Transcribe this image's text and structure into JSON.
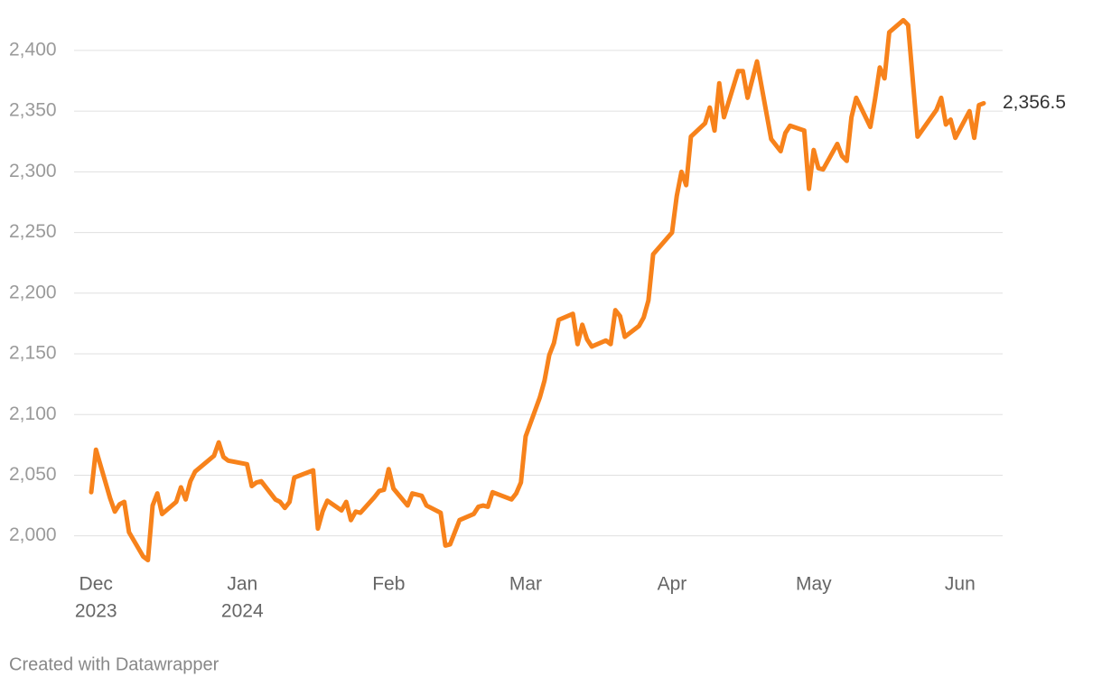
{
  "chart_data": {
    "type": "line",
    "color": "#f7821b",
    "grid": true,
    "ylim": [
      1970,
      2430
    ],
    "yticks": [
      {
        "value": 2000,
        "label": "2,000"
      },
      {
        "value": 2050,
        "label": "2,050"
      },
      {
        "value": 2100,
        "label": "2,100"
      },
      {
        "value": 2150,
        "label": "2,150"
      },
      {
        "value": 2200,
        "label": "2,200"
      },
      {
        "value": 2250,
        "label": "2,250"
      },
      {
        "value": 2300,
        "label": "2,300"
      },
      {
        "value": 2350,
        "label": "2,350"
      },
      {
        "value": 2400,
        "label": "2,400"
      }
    ],
    "xlim": [
      "2023-11-30",
      "2024-06-06"
    ],
    "xticks": [
      {
        "value": "2023-12-01",
        "label": [
          "Dec",
          "2023"
        ]
      },
      {
        "value": "2024-01-01",
        "label": [
          "Jan",
          "2024"
        ]
      },
      {
        "value": "2024-02-01",
        "label": "Feb"
      },
      {
        "value": "2024-03-01",
        "label": "Mar"
      },
      {
        "value": "2024-04-01",
        "label": "Apr"
      },
      {
        "value": "2024-05-01",
        "label": "May"
      },
      {
        "value": "2024-06-01",
        "label": "Jun"
      }
    ],
    "x": [
      "2023-11-30",
      "2023-12-01",
      "2023-12-04",
      "2023-12-05",
      "2023-12-06",
      "2023-12-07",
      "2023-12-08",
      "2023-12-11",
      "2023-12-12",
      "2023-12-13",
      "2023-12-14",
      "2023-12-15",
      "2023-12-18",
      "2023-12-19",
      "2023-12-20",
      "2023-12-21",
      "2023-12-22",
      "2023-12-26",
      "2023-12-27",
      "2023-12-28",
      "2023-12-29",
      "2024-01-02",
      "2024-01-03",
      "2024-01-04",
      "2024-01-05",
      "2024-01-08",
      "2024-01-09",
      "2024-01-10",
      "2024-01-11",
      "2024-01-12",
      "2024-01-16",
      "2024-01-17",
      "2024-01-18",
      "2024-01-19",
      "2024-01-22",
      "2024-01-23",
      "2024-01-24",
      "2024-01-25",
      "2024-01-26",
      "2024-01-29",
      "2024-01-30",
      "2024-01-31",
      "2024-02-01",
      "2024-02-02",
      "2024-02-05",
      "2024-02-06",
      "2024-02-08",
      "2024-02-09",
      "2024-02-12",
      "2024-02-13",
      "2024-02-14",
      "2024-02-16",
      "2024-02-19",
      "2024-02-20",
      "2024-02-21",
      "2024-02-22",
      "2024-02-23",
      "2024-02-27",
      "2024-02-28",
      "2024-02-29",
      "2024-03-01",
      "2024-03-04",
      "2024-03-05",
      "2024-03-06",
      "2024-03-07",
      "2024-03-08",
      "2024-03-11",
      "2024-03-12",
      "2024-03-13",
      "2024-03-14",
      "2024-03-15",
      "2024-03-18",
      "2024-03-19",
      "2024-03-20",
      "2024-03-21",
      "2024-03-22",
      "2024-03-25",
      "2024-03-26",
      "2024-03-27",
      "2024-03-28",
      "2024-04-01",
      "2024-04-02",
      "2024-04-03",
      "2024-04-04",
      "2024-04-05",
      "2024-04-08",
      "2024-04-09",
      "2024-04-10",
      "2024-04-11",
      "2024-04-12",
      "2024-04-15",
      "2024-04-16",
      "2024-04-17",
      "2024-04-18",
      "2024-04-19",
      "2024-04-22",
      "2024-04-24",
      "2024-04-25",
      "2024-04-26",
      "2024-04-29",
      "2024-04-30",
      "2024-05-01",
      "2024-05-02",
      "2024-05-03",
      "2024-05-06",
      "2024-05-07",
      "2024-05-08",
      "2024-05-09",
      "2024-05-10",
      "2024-05-13",
      "2024-05-14",
      "2024-05-15",
      "2024-05-16",
      "2024-05-17",
      "2024-05-20",
      "2024-05-21",
      "2024-05-23",
      "2024-05-27",
      "2024-05-28",
      "2024-05-29",
      "2024-05-30",
      "2024-05-31",
      "2024-06-03",
      "2024-06-04",
      "2024-06-05",
      "2024-06-06"
    ],
    "values": [
      2036,
      2071,
      2031,
      2020,
      2026,
      2028,
      2003,
      1983,
      1980,
      2025,
      2035,
      2018,
      2028,
      2040,
      2030,
      2045,
      2053,
      2066,
      2077,
      2065,
      2062,
      2059,
      2041,
      2044,
      2045,
      2030,
      2028,
      2023,
      2028,
      2048,
      2054,
      2006,
      2020,
      2029,
      2021,
      2028,
      2013,
      2020,
      2019,
      2032,
      2037,
      2038,
      2055,
      2039,
      2025,
      2035,
      2033,
      2025,
      2019,
      1992,
      1993,
      2013,
      2018,
      2024,
      2025,
      2024,
      2036,
      2030,
      2035,
      2044,
      2082,
      2114,
      2128,
      2149,
      2159,
      2178,
      2183,
      2158,
      2174,
      2162,
      2156,
      2161,
      2158,
      2186,
      2181,
      2164,
      2173,
      2180,
      2194,
      2232,
      2250,
      2280,
      2300,
      2289,
      2329,
      2340,
      2353,
      2334,
      2373,
      2345,
      2383,
      2383,
      2361,
      2376,
      2391,
      2327,
      2317,
      2332,
      2338,
      2334,
      2286,
      2318,
      2303,
      2302,
      2323,
      2313,
      2309,
      2345,
      2361,
      2337,
      2360,
      2386,
      2377,
      2415,
      2425,
      2421,
      2329,
      2351,
      2361,
      2339,
      2343,
      2328,
      2350,
      2328,
      2355,
      2356.5
    ],
    "value_labels": [
      null,
      null,
      null,
      null,
      null,
      null,
      null,
      null,
      null,
      null,
      null,
      null,
      null,
      null,
      null,
      null,
      null,
      null,
      null,
      null,
      null,
      null,
      null,
      null,
      null,
      null,
      null,
      null,
      null,
      null,
      null,
      null,
      null,
      null,
      null,
      null,
      null,
      null,
      null,
      null,
      null,
      null,
      null,
      null,
      null,
      null,
      null,
      null,
      null,
      null,
      null,
      null,
      null,
      null,
      null,
      null,
      null,
      null,
      null,
      null,
      null,
      null,
      null,
      null,
      null,
      null,
      null,
      null,
      null,
      null,
      null,
      null,
      null,
      null,
      null,
      null,
      null,
      null,
      null,
      null,
      null,
      null,
      null,
      null,
      null,
      null,
      null,
      null,
      null,
      null,
      null,
      null,
      null,
      null,
      null,
      null,
      null,
      null,
      null,
      null,
      null,
      null,
      null,
      null,
      null,
      null,
      null,
      null,
      null,
      null,
      null,
      null,
      null,
      null,
      null,
      null,
      null,
      null,
      null,
      null,
      null,
      null,
      null,
      null,
      null,
      "2,356.5"
    ],
    "footer": "Created with Datawrapper"
  }
}
